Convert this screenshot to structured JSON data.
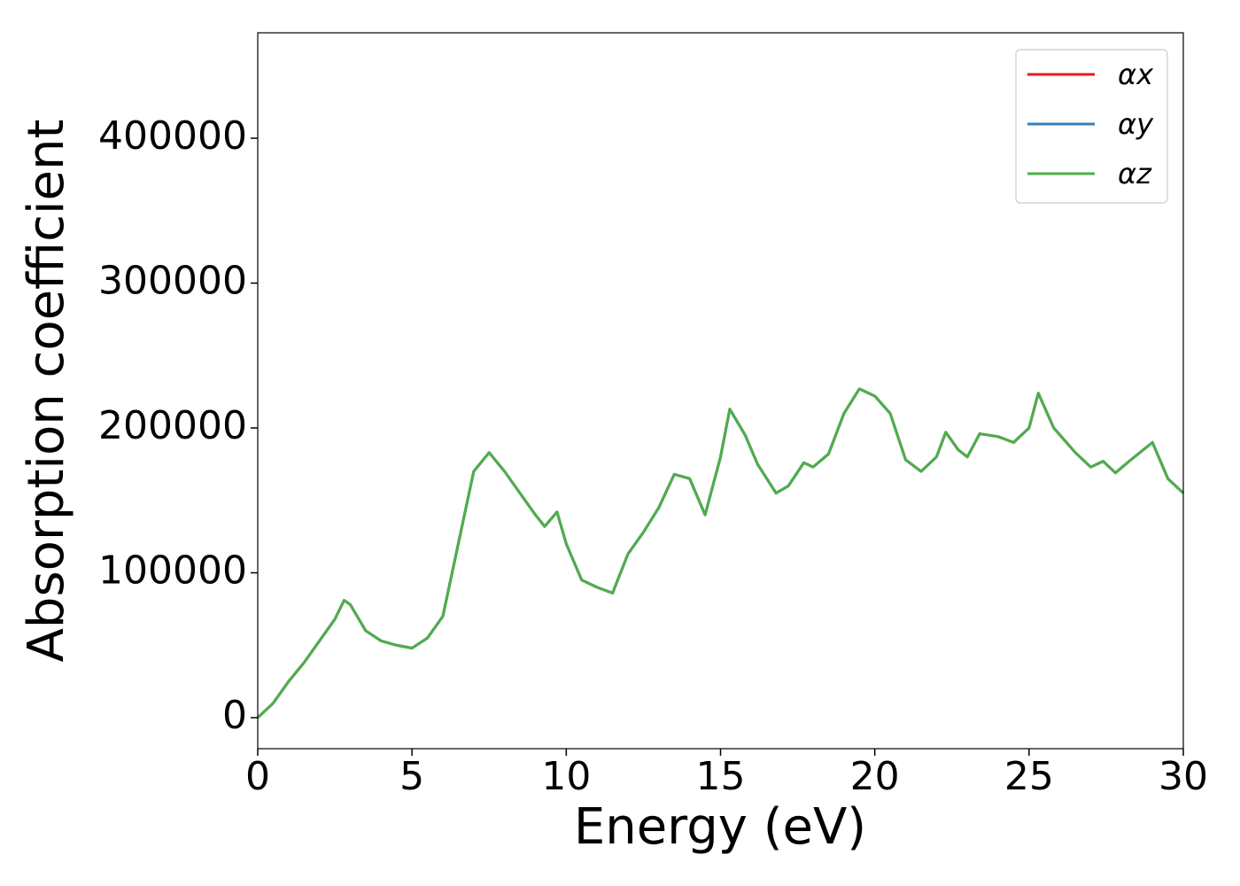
{
  "chart_data": {
    "type": "line",
    "xlabel": "Energy (eV)",
    "ylabel": "Absorption coefficient",
    "x": [
      0,
      0.5,
      1,
      1.5,
      2,
      2.5,
      2.8,
      3,
      3.5,
      4,
      4.5,
      5,
      5.5,
      6,
      6.5,
      7,
      7.5,
      8,
      8.5,
      9,
      9.3,
      9.7,
      10,
      10.5,
      11,
      11.5,
      12,
      12.5,
      13,
      13.5,
      14,
      14.5,
      15,
      15.3,
      15.8,
      16.2,
      16.8,
      17.2,
      17.7,
      18,
      18.5,
      19,
      19.5,
      20,
      20.5,
      21,
      21.5,
      22,
      22.3,
      22.7,
      23,
      23.4,
      24,
      24.5,
      25,
      25.3,
      25.8,
      26.5,
      27,
      27.4,
      27.8,
      28.3,
      29,
      29.5,
      30
    ],
    "series": [
      {
        "name": "αx",
        "color": "#e41a1c",
        "values": [
          0,
          10000,
          25000,
          38000,
          53000,
          68000,
          81000,
          78000,
          60000,
          53000,
          50000,
          48000,
          55000,
          70000,
          120000,
          170000,
          183000,
          170000,
          155000,
          140000,
          132000,
          142000,
          120000,
          95000,
          90000,
          86000,
          113000,
          128000,
          145000,
          168000,
          165000,
          140000,
          180000,
          213000,
          195000,
          175000,
          155000,
          160000,
          176000,
          173000,
          182000,
          210000,
          227000,
          222000,
          210000,
          178000,
          170000,
          180000,
          197000,
          185000,
          180000,
          196000,
          194000,
          190000,
          200000,
          224000,
          200000,
          183000,
          173000,
          177000,
          169000,
          178000,
          190000,
          165000,
          155000
        ]
      },
      {
        "name": "αy",
        "color": "#377eb8",
        "values": [
          0,
          10000,
          25000,
          38000,
          53000,
          68000,
          81000,
          78000,
          60000,
          53000,
          50000,
          48000,
          55000,
          70000,
          120000,
          170000,
          183000,
          170000,
          155000,
          140000,
          132000,
          142000,
          120000,
          95000,
          90000,
          86000,
          113000,
          128000,
          145000,
          168000,
          165000,
          140000,
          180000,
          213000,
          195000,
          175000,
          155000,
          160000,
          176000,
          173000,
          182000,
          210000,
          227000,
          222000,
          210000,
          178000,
          170000,
          180000,
          197000,
          185000,
          180000,
          196000,
          194000,
          190000,
          200000,
          224000,
          200000,
          183000,
          173000,
          177000,
          169000,
          178000,
          190000,
          165000,
          155000
        ]
      },
      {
        "name": "αz",
        "color": "#4daf4a",
        "values": [
          0,
          10000,
          25000,
          38000,
          53000,
          68000,
          81000,
          78000,
          60000,
          53000,
          50000,
          48000,
          55000,
          70000,
          120000,
          170000,
          183000,
          170000,
          155000,
          140000,
          132000,
          142000,
          120000,
          95000,
          90000,
          86000,
          113000,
          128000,
          145000,
          168000,
          165000,
          140000,
          180000,
          213000,
          195000,
          175000,
          155000,
          160000,
          176000,
          173000,
          182000,
          210000,
          227000,
          222000,
          210000,
          178000,
          170000,
          180000,
          197000,
          185000,
          180000,
          196000,
          194000,
          190000,
          200000,
          224000,
          200000,
          183000,
          173000,
          177000,
          169000,
          178000,
          190000,
          165000,
          155000
        ]
      }
    ],
    "xlim": [
      0,
      30
    ],
    "xticks": [
      0,
      5,
      10,
      15,
      20,
      25,
      30
    ],
    "ylim": [
      -21400,
      472800
    ],
    "yticks": [
      0,
      100000,
      200000,
      300000,
      400000
    ],
    "grid": false,
    "legend": "upper right"
  }
}
